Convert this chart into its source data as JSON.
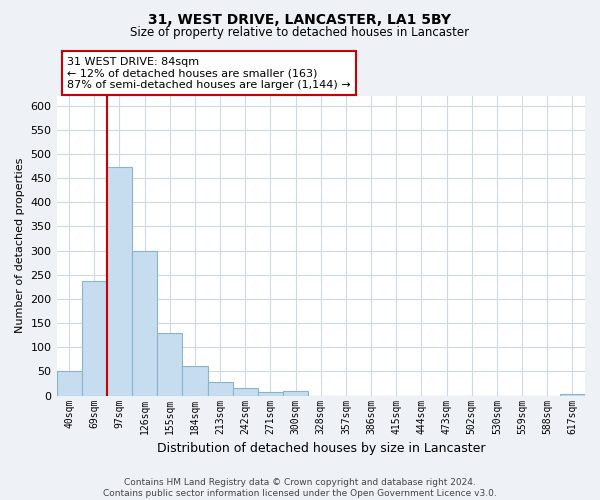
{
  "title": "31, WEST DRIVE, LANCASTER, LA1 5BY",
  "subtitle": "Size of property relative to detached houses in Lancaster",
  "xlabel": "Distribution of detached houses by size in Lancaster",
  "ylabel": "Number of detached properties",
  "bar_color": "#c5ddef",
  "bar_edge_color": "#8ab4cc",
  "categories": [
    "40sqm",
    "69sqm",
    "97sqm",
    "126sqm",
    "155sqm",
    "184sqm",
    "213sqm",
    "242sqm",
    "271sqm",
    "300sqm",
    "328sqm",
    "357sqm",
    "386sqm",
    "415sqm",
    "444sqm",
    "473sqm",
    "502sqm",
    "530sqm",
    "559sqm",
    "588sqm",
    "617sqm"
  ],
  "values": [
    50,
    238,
    472,
    300,
    130,
    62,
    28,
    15,
    8,
    10,
    0,
    0,
    0,
    0,
    0,
    0,
    0,
    0,
    0,
    0,
    3
  ],
  "ylim": [
    0,
    620
  ],
  "yticks": [
    0,
    50,
    100,
    150,
    200,
    250,
    300,
    350,
    400,
    450,
    500,
    550,
    600
  ],
  "marker_color": "#cc0000",
  "annotation_text_line1": "31 WEST DRIVE: 84sqm",
  "annotation_text_line2": "← 12% of detached houses are smaller (163)",
  "annotation_text_line3": "87% of semi-detached houses are larger (1,144) →",
  "footer_line1": "Contains HM Land Registry data © Crown copyright and database right 2024.",
  "footer_line2": "Contains public sector information licensed under the Open Government Licence v3.0.",
  "background_color": "#eef2f7",
  "plot_bg_color": "#ffffff",
  "grid_color": "#cdd8e8"
}
